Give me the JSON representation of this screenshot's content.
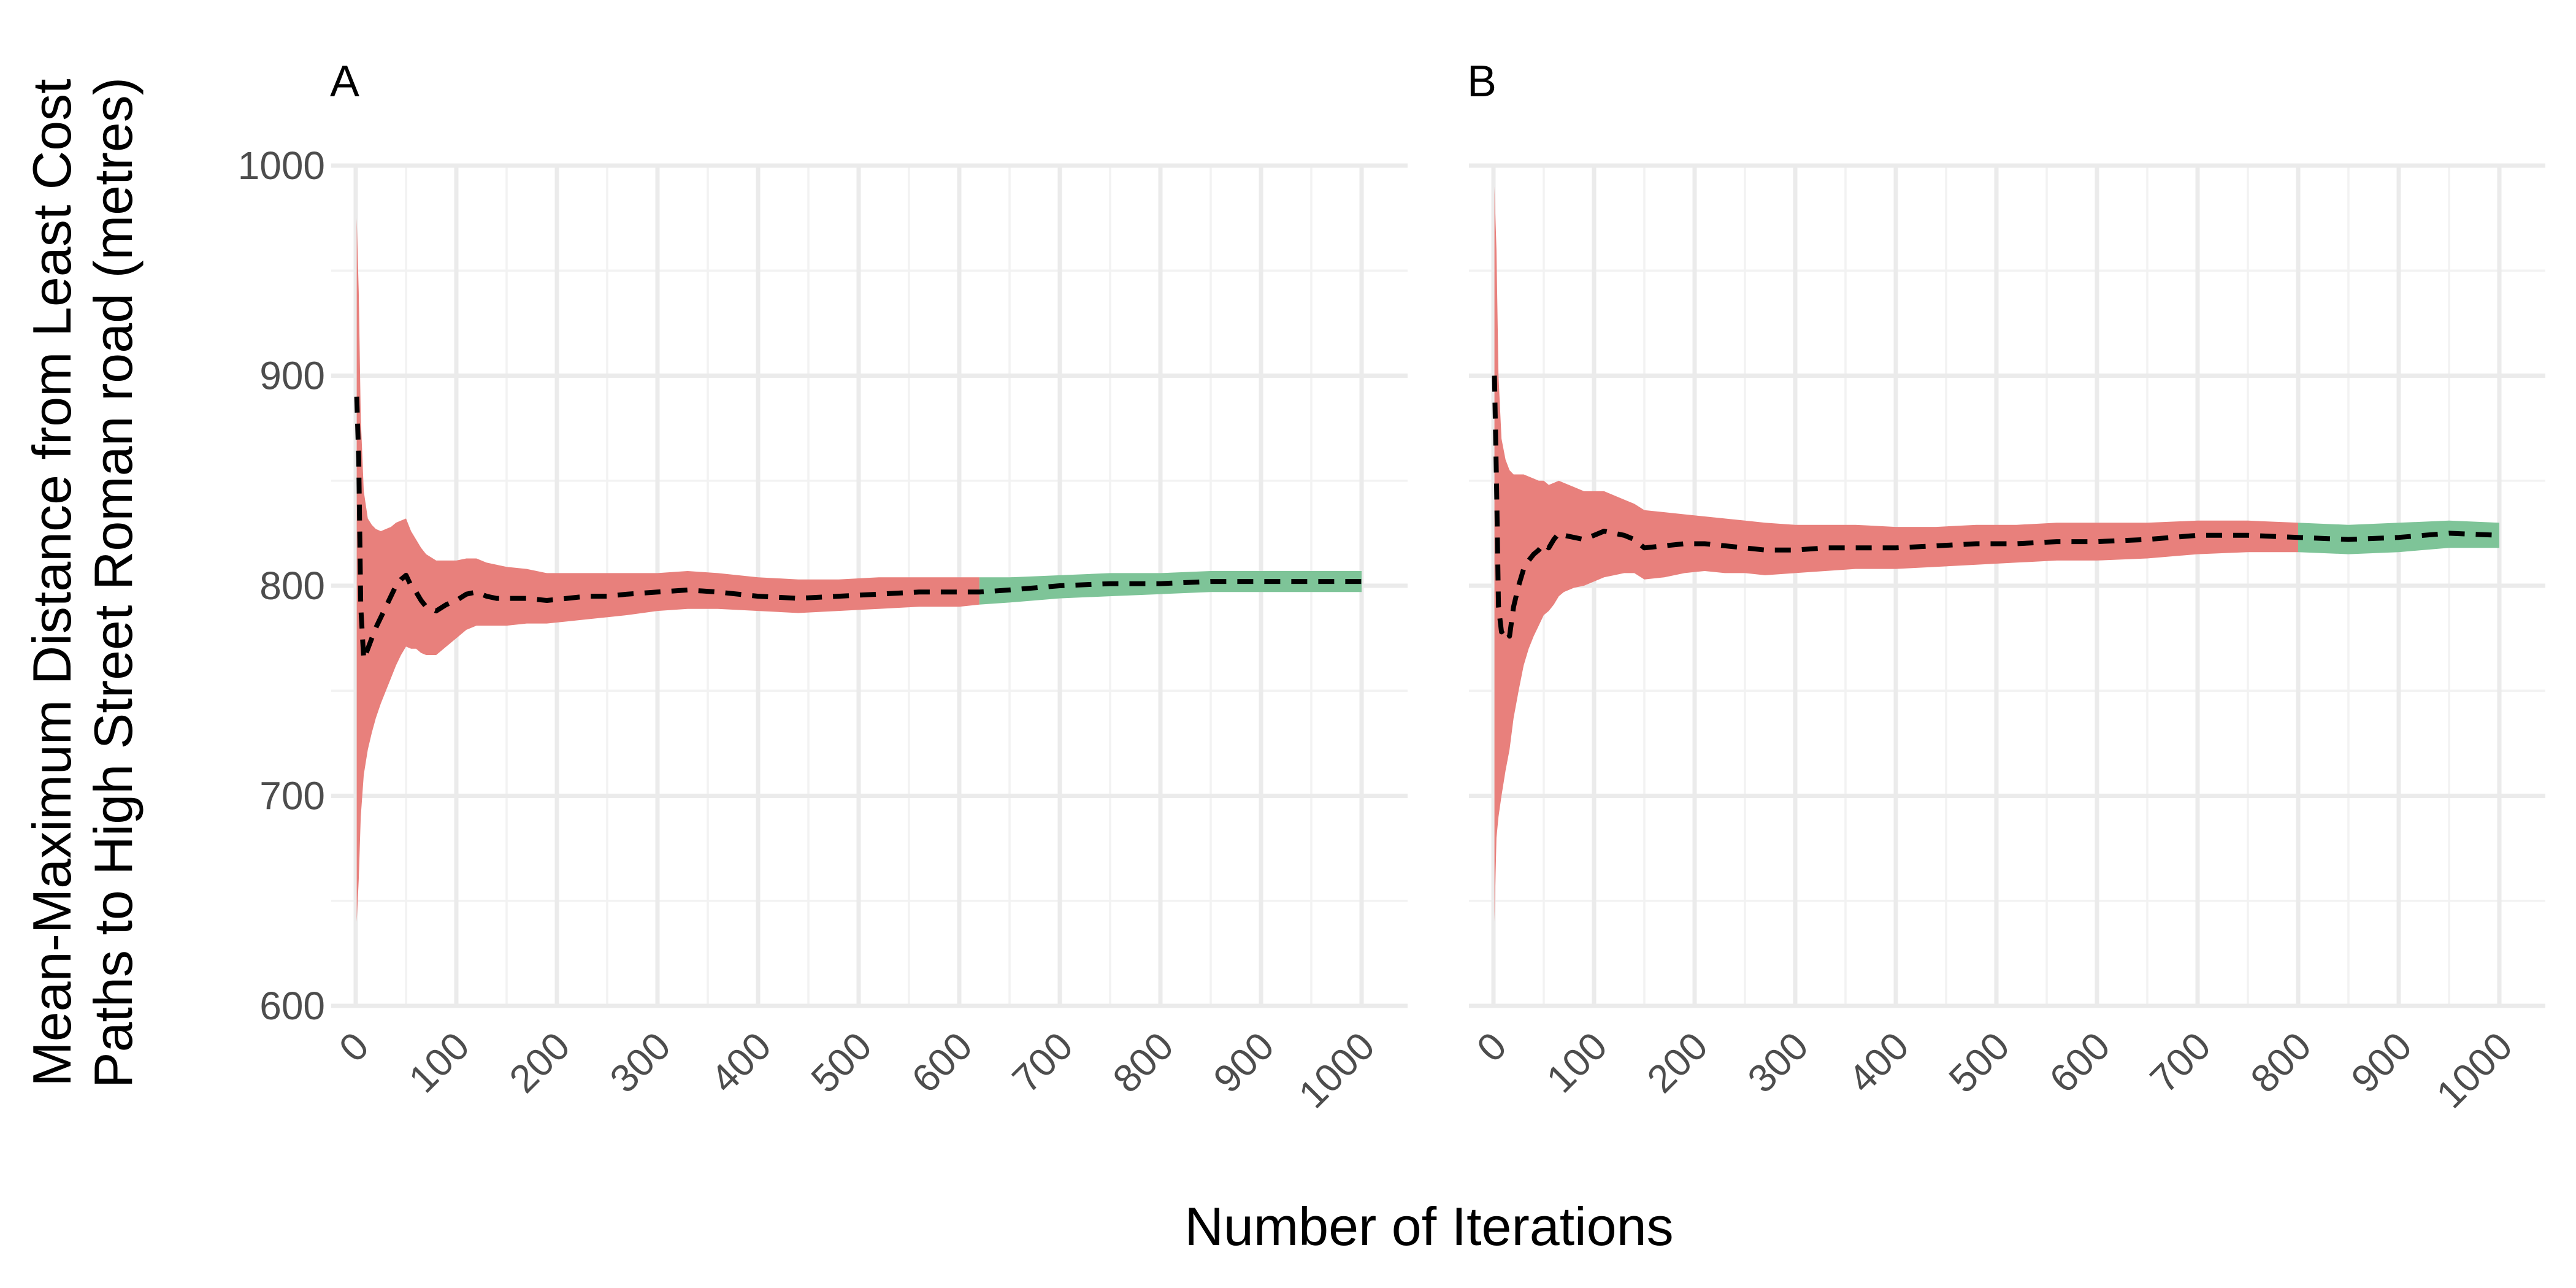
{
  "chart_data": {
    "type": "line",
    "xlabel": "Number of Iterations",
    "ylabel_line1": "Mean-Maximum Distance from Least Cost",
    "ylabel_line2": "Paths to High Street Roman road (metres)",
    "xlim": [
      0,
      1000
    ],
    "ylim": [
      600,
      1000
    ],
    "x_ticks": [
      "0",
      "100",
      "200",
      "300",
      "400",
      "500",
      "600",
      "700",
      "800",
      "900",
      "1000"
    ],
    "y_ticks": [
      "600",
      "700",
      "800",
      "900",
      "1000"
    ],
    "grid": true,
    "colors": {
      "unconverged": "#e8807c",
      "converged": "#7ec498",
      "mean_line": "#000000"
    },
    "panels": [
      {
        "label": "A",
        "split_x": 620,
        "series": {
          "x": [
            1,
            3,
            5,
            8,
            12,
            16,
            20,
            25,
            30,
            35,
            40,
            45,
            50,
            55,
            60,
            65,
            70,
            80,
            90,
            100,
            110,
            120,
            130,
            140,
            150,
            170,
            190,
            210,
            230,
            250,
            270,
            300,
            330,
            360,
            400,
            440,
            480,
            520,
            560,
            600,
            620,
            650,
            700,
            750,
            800,
            850,
            900,
            950,
            1000
          ],
          "mean": [
            890,
            860,
            790,
            765,
            770,
            775,
            780,
            785,
            790,
            795,
            800,
            803,
            805,
            800,
            797,
            793,
            790,
            788,
            791,
            793,
            796,
            797,
            795,
            794,
            794,
            794,
            793,
            794,
            795,
            795,
            796,
            797,
            798,
            797,
            795,
            794,
            795,
            796,
            797,
            797,
            797,
            798,
            800,
            801,
            801,
            802,
            802,
            802,
            802
          ],
          "upper": [
            975,
            940,
            880,
            845,
            832,
            829,
            827,
            826,
            827,
            828,
            830,
            831,
            832,
            826,
            822,
            818,
            815,
            812,
            812,
            812,
            813,
            813,
            811,
            810,
            809,
            808,
            806,
            806,
            806,
            806,
            806,
            806,
            807,
            806,
            804,
            803,
            803,
            804,
            804,
            804,
            804,
            804,
            805,
            806,
            806,
            807,
            807,
            807,
            807
          ],
          "lower": [
            640,
            660,
            690,
            710,
            722,
            730,
            737,
            744,
            750,
            756,
            762,
            767,
            771,
            770,
            770,
            768,
            767,
            767,
            771,
            775,
            779,
            781,
            781,
            781,
            781,
            782,
            782,
            783,
            784,
            785,
            786,
            788,
            789,
            789,
            788,
            787,
            788,
            789,
            790,
            790,
            791,
            792,
            794,
            795,
            796,
            797,
            797,
            797,
            797
          ]
        }
      },
      {
        "label": "B",
        "split_x": 800,
        "series": {
          "x": [
            1,
            3,
            5,
            8,
            12,
            16,
            20,
            25,
            30,
            35,
            40,
            45,
            50,
            55,
            60,
            65,
            70,
            80,
            90,
            100,
            110,
            120,
            130,
            140,
            150,
            170,
            190,
            210,
            230,
            250,
            270,
            300,
            330,
            360,
            400,
            440,
            480,
            520,
            560,
            600,
            650,
            700,
            750,
            800,
            850,
            900,
            950,
            1000
          ],
          "mean": [
            900,
            850,
            790,
            778,
            780,
            776,
            790,
            800,
            808,
            812,
            815,
            817,
            820,
            818,
            822,
            825,
            824,
            823,
            822,
            824,
            826,
            825,
            824,
            822,
            818,
            819,
            820,
            820,
            819,
            818,
            817,
            817,
            818,
            818,
            818,
            819,
            820,
            820,
            821,
            821,
            822,
            824,
            824,
            823,
            822,
            823,
            825,
            824
          ],
          "upper": [
            990,
            960,
            900,
            870,
            860,
            855,
            853,
            853,
            853,
            852,
            851,
            850,
            850,
            848,
            849,
            850,
            849,
            847,
            845,
            845,
            845,
            843,
            841,
            839,
            836,
            835,
            834,
            833,
            832,
            831,
            830,
            829,
            829,
            829,
            828,
            828,
            829,
            829,
            830,
            830,
            830,
            831,
            831,
            830,
            829,
            830,
            831,
            830
          ],
          "lower": [
            640,
            680,
            690,
            700,
            712,
            722,
            737,
            750,
            762,
            770,
            776,
            781,
            786,
            788,
            791,
            795,
            797,
            799,
            800,
            802,
            804,
            805,
            806,
            806,
            803,
            804,
            806,
            807,
            806,
            806,
            805,
            806,
            807,
            808,
            808,
            809,
            810,
            811,
            812,
            812,
            813,
            815,
            816,
            816,
            815,
            816,
            818,
            818
          ]
        }
      }
    ]
  }
}
